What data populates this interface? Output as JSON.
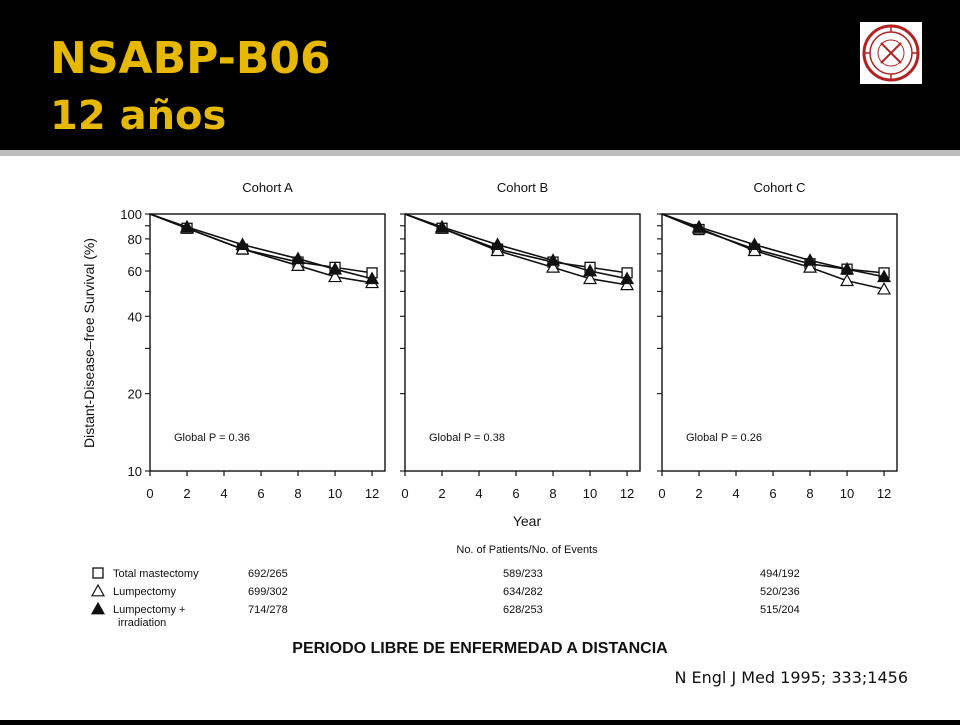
{
  "slide": {
    "title_line1": "NSABP-B06",
    "title_line2": "12 años",
    "caption": "PERIODO LIBRE DE ENFERMEDAD A DISTANCIA",
    "citation": "N Engl J Med 1995; 333;1456",
    "colors": {
      "title": "#e6b800",
      "background": "#000000",
      "rule": "#bdbdbd",
      "logo": "#b22222"
    }
  },
  "figure": {
    "ylabel": "Distant-Disease–free Survival (%)",
    "xlabel": "Year",
    "table_header": "No. of Patients/No. of Events"
  },
  "legend": [
    {
      "name": "Total mastectomy",
      "marker": "open-square",
      "events": [
        "692/265",
        "589/233",
        "494/192"
      ]
    },
    {
      "name": "Lumpectomy",
      "marker": "open-triangle",
      "events": [
        "699/302",
        "634/282",
        "520/236"
      ]
    },
    {
      "name": "Lumpectomy +",
      "name2": "irradiation",
      "marker": "filled-triangle",
      "events": [
        "714/278",
        "628/253",
        "515/204"
      ]
    }
  ],
  "chart_data": [
    {
      "type": "line",
      "title": "Cohort A",
      "annotation": "Global P = 0.36",
      "xlim": [
        0,
        12.7
      ],
      "ylim": [
        10,
        100
      ],
      "yscale": "log",
      "xticks": [
        0,
        2,
        4,
        6,
        8,
        10,
        12
      ],
      "yticks": [
        10,
        20,
        40,
        60,
        80,
        100
      ],
      "x": [
        0,
        2,
        5,
        8,
        10,
        12
      ],
      "series": [
        {
          "name": "Total mastectomy",
          "marker": "open-square",
          "values": [
            100,
            88,
            73,
            65,
            62,
            59
          ]
        },
        {
          "name": "Lumpectomy",
          "marker": "open-triangle",
          "values": [
            100,
            88,
            73,
            63,
            57,
            54
          ]
        },
        {
          "name": "Lumpectomy + irradiation",
          "marker": "filled-triangle",
          "values": [
            100,
            89,
            76,
            67,
            61,
            56
          ]
        }
      ]
    },
    {
      "type": "line",
      "title": "Cohort B",
      "annotation": "Global P = 0.38",
      "xlim": [
        0,
        12.7
      ],
      "ylim": [
        10,
        100
      ],
      "yscale": "log",
      "xticks": [
        0,
        2,
        4,
        6,
        8,
        10,
        12
      ],
      "yticks": [
        10,
        20,
        40,
        60,
        80,
        100
      ],
      "x": [
        0,
        2,
        5,
        8,
        10,
        12
      ],
      "series": [
        {
          "name": "Total mastectomy",
          "marker": "open-square",
          "values": [
            100,
            88,
            73,
            65,
            62,
            59
          ]
        },
        {
          "name": "Lumpectomy",
          "marker": "open-triangle",
          "values": [
            100,
            88,
            72,
            62,
            56,
            53
          ]
        },
        {
          "name": "Lumpectomy + irradiation",
          "marker": "filled-triangle",
          "values": [
            100,
            89,
            76,
            66,
            60,
            56
          ]
        }
      ]
    },
    {
      "type": "line",
      "title": "Cohort C",
      "annotation": "Global P = 0.26",
      "xlim": [
        0,
        12.7
      ],
      "ylim": [
        10,
        100
      ],
      "yscale": "log",
      "xticks": [
        0,
        2,
        4,
        6,
        8,
        10,
        12
      ],
      "yticks": [
        10,
        20,
        40,
        60,
        80,
        100
      ],
      "x": [
        0,
        2,
        5,
        8,
        10,
        12
      ],
      "series": [
        {
          "name": "Total mastectomy",
          "marker": "open-square",
          "values": [
            100,
            87,
            73,
            64,
            61,
            59
          ]
        },
        {
          "name": "Lumpectomy",
          "marker": "open-triangle",
          "values": [
            100,
            88,
            72,
            62,
            55,
            51
          ]
        },
        {
          "name": "Lumpectomy + irradiation",
          "marker": "filled-triangle",
          "values": [
            100,
            89,
            76,
            66,
            61,
            57
          ]
        }
      ]
    }
  ]
}
